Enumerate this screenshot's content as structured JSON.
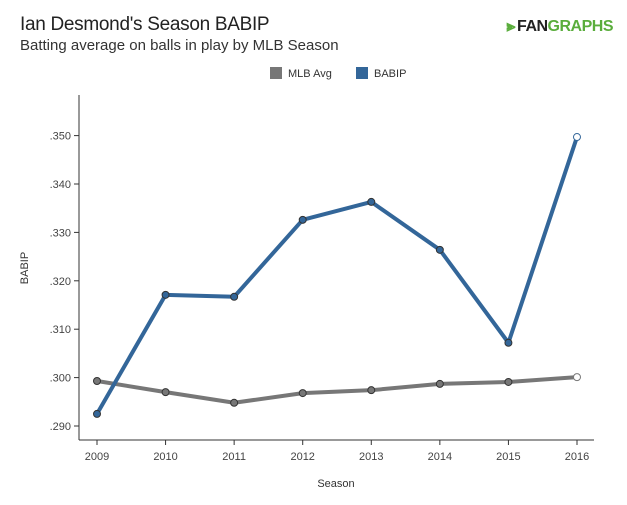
{
  "header": {
    "title": "Ian Desmond's Season BABIP",
    "subtitle": "Batting average on balls in play by MLB Season",
    "logo_text": "FANGRAPHS"
  },
  "chart_data": {
    "type": "line",
    "title": "Ian Desmond's Season BABIP",
    "subtitle": "Batting average on balls in play by MLB Season",
    "xlabel": "Season",
    "ylabel": "BABIP",
    "categories": [
      "2009",
      "2010",
      "2011",
      "2012",
      "2013",
      "2014",
      "2015",
      "2016"
    ],
    "yticks": [
      ".290",
      ".300",
      ".310",
      ".320",
      ".330",
      ".340",
      ".350"
    ],
    "ylim": [
      0.288,
      0.356
    ],
    "grid": false,
    "legend": "top-center",
    "series": [
      {
        "name": "MLB Avg",
        "color": "#777777",
        "values": [
          0.2993,
          0.297,
          0.2948,
          0.2968,
          0.2974,
          0.2987,
          0.2991,
          0.3001
        ]
      },
      {
        "name": "BABIP",
        "color": "#336699",
        "values": [
          0.2925,
          0.3171,
          0.3167,
          0.3326,
          0.3363,
          0.3264,
          0.3072,
          0.3497
        ]
      }
    ]
  }
}
